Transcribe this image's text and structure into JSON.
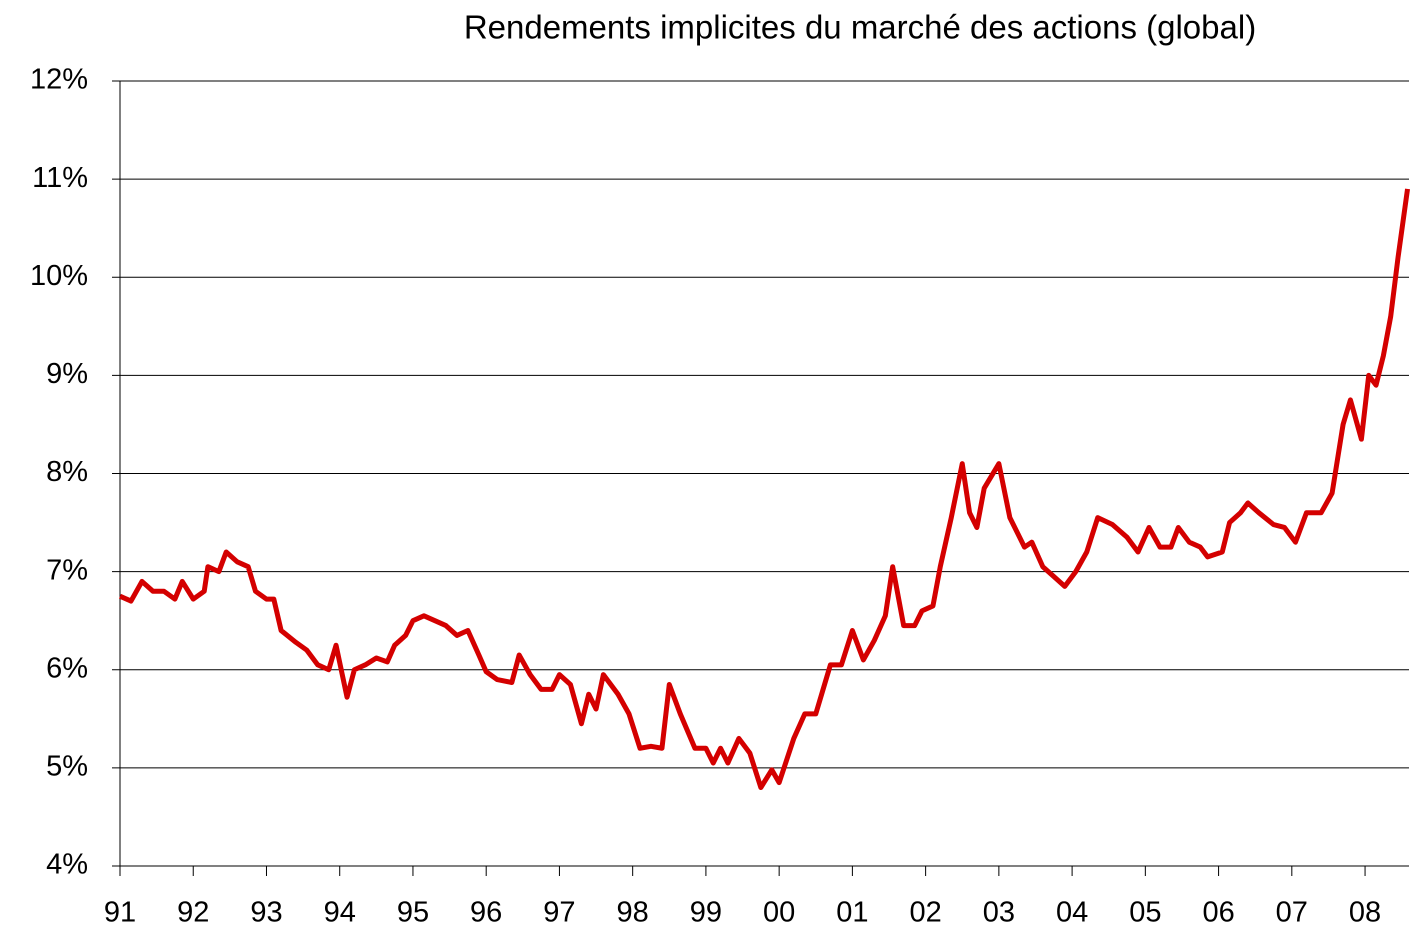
{
  "chart_data": {
    "type": "line",
    "title": "Rendements implicites du marché des actions (global)",
    "x": [
      1991.0,
      1991.15,
      1991.3,
      1991.45,
      1991.6,
      1991.75,
      1991.85,
      1992.0,
      1992.15,
      1992.2,
      1992.35,
      1992.45,
      1992.6,
      1992.75,
      1992.85,
      1993.0,
      1993.1,
      1993.2,
      1993.4,
      1993.55,
      1993.7,
      1993.85,
      1993.95,
      1994.1,
      1994.2,
      1994.35,
      1994.5,
      1994.65,
      1994.75,
      1994.9,
      1995.0,
      1995.15,
      1995.3,
      1995.45,
      1995.6,
      1995.75,
      1995.9,
      1996.0,
      1996.15,
      1996.35,
      1996.45,
      1996.6,
      1996.75,
      1996.9,
      1997.0,
      1997.15,
      1997.3,
      1997.4,
      1997.5,
      1997.6,
      1997.8,
      1997.95,
      1998.1,
      1998.25,
      1998.4,
      1998.5,
      1998.65,
      1998.85,
      1999.0,
      1999.1,
      1999.2,
      1999.3,
      1999.45,
      1999.6,
      1999.75,
      1999.9,
      2000.0,
      2000.2,
      2000.35,
      2000.5,
      2000.6,
      2000.7,
      2000.85,
      2001.0,
      2001.15,
      2001.3,
      2001.45,
      2001.55,
      2001.7,
      2001.85,
      2001.95,
      2002.1,
      2002.2,
      2002.35,
      2002.5,
      2002.6,
      2002.7,
      2002.8,
      2003.0,
      2003.15,
      2003.35,
      2003.45,
      2003.6,
      2003.75,
      2003.9,
      2004.05,
      2004.2,
      2004.35,
      2004.55,
      2004.75,
      2004.9,
      2005.05,
      2005.2,
      2005.35,
      2005.45,
      2005.6,
      2005.75,
      2005.85,
      2006.05,
      2006.15,
      2006.3,
      2006.4,
      2006.55,
      2006.75,
      2006.9,
      2007.05,
      2007.2,
      2007.4,
      2007.55,
      2007.7,
      2007.8,
      2007.95,
      2008.05,
      2008.15,
      2008.25,
      2008.35,
      2008.45,
      2008.58
    ],
    "series": [
      {
        "name": "Rendements implicites",
        "color": "#d40000",
        "values": [
          6.75,
          6.7,
          6.9,
          6.8,
          6.8,
          6.72,
          6.9,
          6.72,
          6.8,
          7.05,
          7.0,
          7.2,
          7.1,
          7.05,
          6.8,
          6.72,
          6.72,
          6.4,
          6.28,
          6.2,
          6.05,
          6.0,
          6.25,
          5.72,
          6.0,
          6.05,
          6.12,
          6.08,
          6.25,
          6.35,
          6.5,
          6.55,
          6.5,
          6.45,
          6.35,
          6.4,
          6.15,
          5.98,
          5.9,
          5.87,
          6.15,
          5.95,
          5.8,
          5.8,
          5.95,
          5.85,
          5.45,
          5.75,
          5.6,
          5.95,
          5.75,
          5.55,
          5.2,
          5.22,
          5.2,
          5.85,
          5.55,
          5.2,
          5.2,
          5.05,
          5.2,
          5.05,
          5.3,
          5.15,
          4.8,
          4.98,
          4.85,
          5.3,
          5.55,
          5.55,
          5.8,
          6.05,
          6.05,
          6.4,
          6.1,
          6.3,
          6.55,
          7.05,
          6.45,
          6.45,
          6.6,
          6.65,
          7.05,
          7.55,
          8.1,
          7.6,
          7.45,
          7.85,
          8.1,
          7.55,
          7.25,
          7.3,
          7.05,
          6.95,
          6.85,
          7.0,
          7.2,
          7.55,
          7.48,
          7.35,
          7.2,
          7.45,
          7.25,
          7.25,
          7.45,
          7.3,
          7.25,
          7.15,
          7.2,
          7.5,
          7.6,
          7.7,
          7.6,
          7.48,
          7.45,
          7.3,
          7.6,
          7.6,
          7.8,
          8.5,
          8.75,
          8.35,
          9.0,
          8.9,
          9.2,
          9.6,
          10.2,
          10.9
        ]
      }
    ],
    "xlim": [
      1991,
      2008.6
    ],
    "xticks": [
      {
        "value": 1991,
        "label": "91"
      },
      {
        "value": 1992,
        "label": "92"
      },
      {
        "value": 1993,
        "label": "93"
      },
      {
        "value": 1994,
        "label": "94"
      },
      {
        "value": 1995,
        "label": "95"
      },
      {
        "value": 1996,
        "label": "96"
      },
      {
        "value": 1997,
        "label": "97"
      },
      {
        "value": 1998,
        "label": "98"
      },
      {
        "value": 1999,
        "label": "99"
      },
      {
        "value": 2000,
        "label": "00"
      },
      {
        "value": 2001,
        "label": "01"
      },
      {
        "value": 2002,
        "label": "02"
      },
      {
        "value": 2003,
        "label": "03"
      },
      {
        "value": 2004,
        "label": "04"
      },
      {
        "value": 2005,
        "label": "05"
      },
      {
        "value": 2006,
        "label": "06"
      },
      {
        "value": 2007,
        "label": "07"
      },
      {
        "value": 2008,
        "label": "08"
      }
    ],
    "ylim": [
      4,
      12
    ],
    "yticks": [
      {
        "value": 4,
        "label": "4%"
      },
      {
        "value": 5,
        "label": "5%"
      },
      {
        "value": 6,
        "label": "6%"
      },
      {
        "value": 7,
        "label": "7%"
      },
      {
        "value": 8,
        "label": "8%"
      },
      {
        "value": 9,
        "label": "9%"
      },
      {
        "value": 10,
        "label": "10%"
      },
      {
        "value": 11,
        "label": "11%"
      },
      {
        "value": 12,
        "label": "12%"
      }
    ],
    "grid": true
  }
}
